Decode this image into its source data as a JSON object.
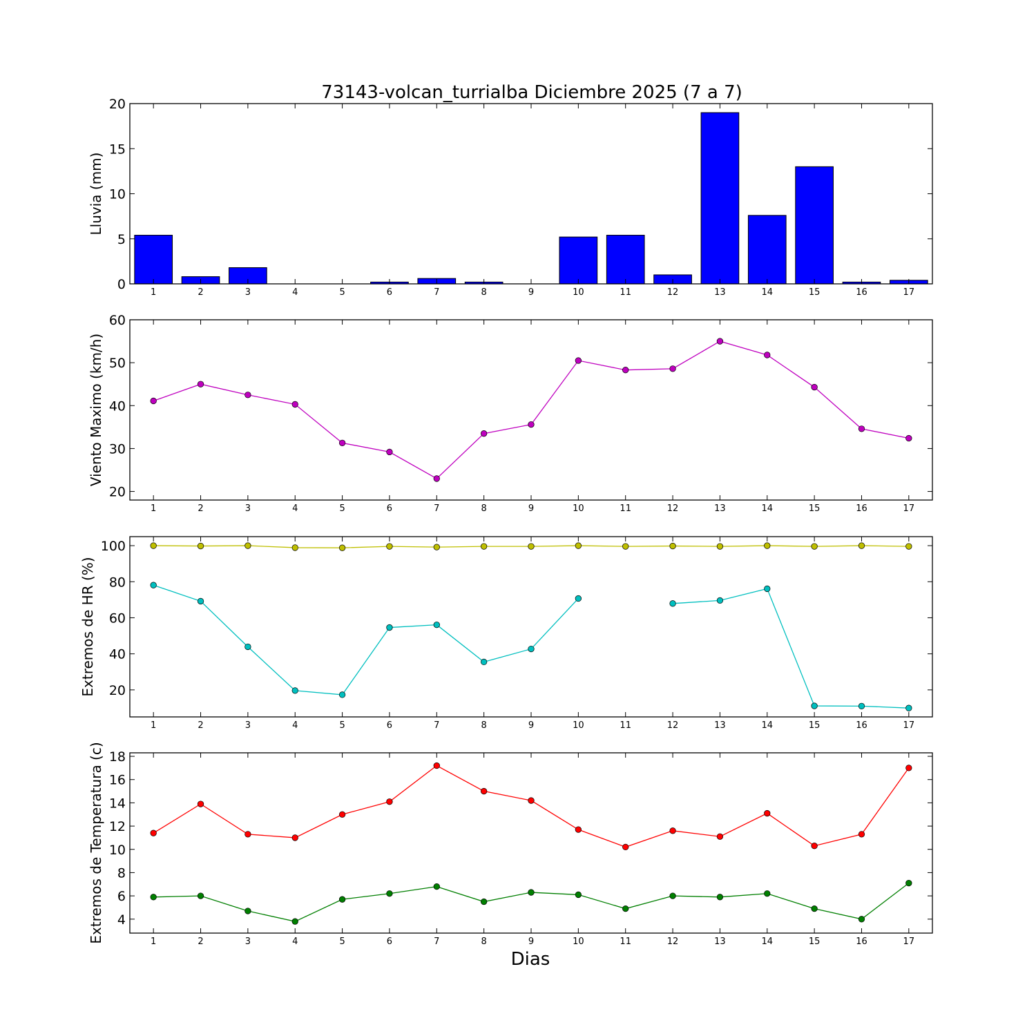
{
  "title": "73143-volcan_turrialba Diciembre 2025  (7 a 7)",
  "xlabel": "Dias",
  "chart_data": [
    {
      "type": "bar",
      "ylabel": "Lluvia (mm)",
      "ylim": [
        0,
        20
      ],
      "yticks": [
        0,
        5,
        10,
        15,
        20
      ],
      "categories": [
        "1",
        "2",
        "3",
        "4",
        "5",
        "6",
        "7",
        "8",
        "9",
        "10",
        "11",
        "12",
        "13",
        "14",
        "15",
        "16",
        "17"
      ],
      "series": [
        {
          "values": [
            5.4,
            0.8,
            1.8,
            0.0,
            0.0,
            0.2,
            0.6,
            0.2,
            0.0,
            5.2,
            5.4,
            1.0,
            19.0,
            7.6,
            13.0,
            0.2,
            0.4
          ],
          "color": "#0000ff"
        }
      ]
    },
    {
      "type": "line",
      "ylabel": "Viento Maximo (km/h)",
      "ylim": [
        18,
        60
      ],
      "yticks": [
        20,
        30,
        40,
        50,
        60
      ],
      "categories": [
        "1",
        "2",
        "3",
        "4",
        "5",
        "6",
        "7",
        "8",
        "9",
        "10",
        "11",
        "12",
        "13",
        "14",
        "15",
        "16",
        "17"
      ],
      "series": [
        {
          "values": [
            41.1,
            45.0,
            42.5,
            40.3,
            31.3,
            29.2,
            23.0,
            33.5,
            35.6,
            50.5,
            48.3,
            48.6,
            55.0,
            51.8,
            44.3,
            34.6,
            32.4
          ],
          "color": "#bf00bf"
        }
      ]
    },
    {
      "type": "line",
      "ylabel": "Extremos de HR (%)",
      "ylim": [
        5,
        105
      ],
      "yticks": [
        20,
        40,
        60,
        80,
        100
      ],
      "categories": [
        "1",
        "2",
        "3",
        "4",
        "5",
        "6",
        "7",
        "8",
        "9",
        "10",
        "11",
        "12",
        "13",
        "14",
        "15",
        "16",
        "17"
      ],
      "series": [
        {
          "values": [
            100,
            99.8,
            100,
            98.9,
            98.8,
            99.6,
            99.2,
            99.6,
            99.6,
            100,
            99.6,
            99.8,
            99.6,
            100,
            99.6,
            100,
            99.6
          ],
          "color": "#bfbf00"
        },
        {
          "values": [
            78.1,
            69.2,
            43.9,
            19.6,
            17.3,
            54.6,
            56.1,
            35.5,
            42.7,
            70.7,
            null,
            67.9,
            69.6,
            76.1,
            11.1,
            11.0,
            9.9
          ],
          "color": "#00bfbf"
        }
      ]
    },
    {
      "type": "line",
      "ylabel": "Extremos de Temperatura (c)",
      "ylim": [
        2.8,
        18.3
      ],
      "yticks": [
        4,
        6,
        8,
        10,
        12,
        14,
        16,
        18
      ],
      "categories": [
        "1",
        "2",
        "3",
        "4",
        "5",
        "6",
        "7",
        "8",
        "9",
        "10",
        "11",
        "12",
        "13",
        "14",
        "15",
        "16",
        "17"
      ],
      "series": [
        {
          "values": [
            11.4,
            13.9,
            11.3,
            11.0,
            13.0,
            14.1,
            17.2,
            15.0,
            14.2,
            11.7,
            10.2,
            11.6,
            11.1,
            13.1,
            10.3,
            11.3,
            17.0
          ],
          "color": "#ff0000"
        },
        {
          "values": [
            5.9,
            6.0,
            4.7,
            3.8,
            5.7,
            6.2,
            6.8,
            5.5,
            6.3,
            6.1,
            4.9,
            6.0,
            5.9,
            6.2,
            4.9,
            4.0,
            7.1
          ],
          "color": "#007f00"
        }
      ]
    }
  ]
}
